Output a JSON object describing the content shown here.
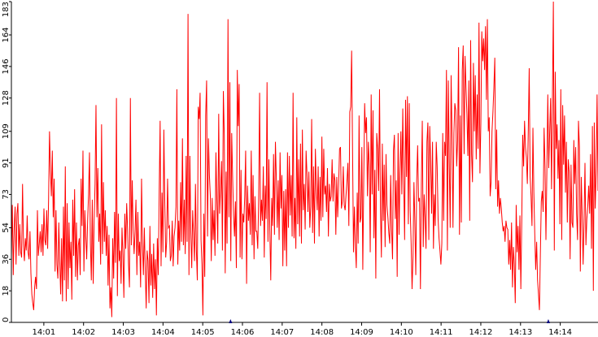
{
  "chart_data": {
    "type": "line",
    "title": "",
    "xlabel": "",
    "ylabel": "",
    "ylim": [
      0,
      183
    ],
    "y_ticks": [
      0,
      18,
      36,
      54,
      73,
      91,
      109,
      128,
      146,
      164,
      183
    ],
    "x_ticks": [
      "14:01",
      "14:02",
      "14:03",
      "14:04",
      "14:05",
      "14:06",
      "14:07",
      "14:08",
      "14:09",
      "14:10",
      "14:11",
      "14:12",
      "14:13",
      "14:14"
    ],
    "grid": false,
    "legend": "none",
    "line_color": "#ff0000",
    "axis_color": "#000000",
    "marker_color": "#000080",
    "markers_at": [
      "14:05",
      "14:13"
    ],
    "x_start": "14:00:11",
    "x_end": "14:14:57",
    "series": [
      {
        "values": [
          38,
          67,
          27,
          54,
          66,
          33,
          62,
          68,
          38,
          56,
          40,
          37,
          79,
          45,
          35,
          48,
          41,
          61,
          40,
          36,
          52,
          28,
          16,
          11,
          7,
          20,
          26,
          19,
          64,
          38,
          45,
          52,
          40,
          56,
          38,
          65,
          47,
          44,
          64,
          42,
          70,
          109,
          86,
          72,
          98,
          60,
          82,
          29,
          64,
          33,
          25,
          57,
          35,
          16,
          48,
          12,
          66,
          24,
          89,
          12,
          68,
          19,
          57,
          31,
          46,
          13,
          70,
          38,
          76,
          26,
          57,
          24,
          44,
          48,
          27,
          82,
          55,
          98,
          29,
          64,
          49,
          36,
          58,
          73,
          97,
          45,
          24,
          70,
          22,
          58,
          79,
          124,
          60,
          88,
          46,
          62,
          33,
          113,
          39,
          80,
          46,
          64,
          38,
          55,
          21,
          50,
          8,
          20,
          3,
          48,
          25,
          63,
          34,
          128,
          15,
          62,
          35,
          41,
          22,
          54,
          38,
          14,
          62,
          42,
          68,
          53,
          33,
          20,
          128,
          44,
          81,
          52,
          39,
          52,
          70,
          27,
          63,
          38,
          46,
          20,
          82,
          45,
          27,
          54,
          30,
          8,
          41,
          35,
          11,
          55,
          21,
          39,
          14,
          45,
          19,
          36,
          4,
          48,
          27,
          75,
          115,
          32,
          74,
          40,
          110,
          69,
          37,
          46,
          82,
          54,
          55,
          35,
          38,
          58,
          32,
          49,
          54,
          66,
          133,
          33,
          58,
          41,
          80,
          46,
          105,
          44,
          70,
          39,
          95,
          46,
          176,
          27,
          95,
          51,
          31,
          64,
          50,
          35,
          79,
          41,
          24,
          123,
          116,
          131,
          47,
          33,
          4,
          62,
          26,
          118,
          138,
          49,
          105,
          84,
          72,
          35,
          71,
          47,
          64,
          38,
          97,
          70,
          45,
          119,
          62,
          76,
          92,
          41,
          132,
          107,
          28,
          86,
          45,
          173,
          60,
          137,
          35,
          108,
          82,
          61,
          49,
          69,
          31,
          144,
          112,
          136,
          37,
          87,
          36,
          62,
          57,
          72,
          98,
          22,
          78,
          58,
          68,
          50,
          98,
          44,
          84,
          36,
          72,
          52,
          52,
          42,
          71,
          131,
          55,
          70,
          58,
          89,
          37,
          78,
          59,
          137,
          46,
          93,
          52,
          24,
          71,
          55,
          96,
          50,
          103,
          82,
          54,
          81,
          47,
          97,
          65,
          84,
          32,
          75,
          41,
          76,
          32,
          97,
          54,
          95,
          61,
          84,
          49,
          131,
          48,
          71,
          42,
          117,
          56,
          93,
          49,
          102,
          45,
          110,
          64,
          79,
          53,
          98,
          84,
          63,
          86,
          54,
          66,
          116,
          51,
          89,
          45,
          99,
          76,
          64,
          89,
          49,
          83,
          58,
          106,
          60,
          99,
          73,
          78,
          63,
          88,
          49,
          79,
          69,
          72,
          93,
          69,
          85,
          81,
          50,
          83,
          60,
          78,
          99,
          100,
          65,
          69,
          89,
          67,
          64,
          73,
          81,
          91,
          55,
          120,
          123,
          155,
          97,
          40,
          66,
          44,
          31,
          74,
          45,
          118,
          57,
          60,
          100,
          30,
          81,
          125,
          108,
          117,
          72,
          103,
          89,
          40,
          130,
          73,
          121,
          48,
          87,
          25,
          108,
          99,
          75,
          133,
          65,
          37,
          102,
          58,
          90,
          43,
          96,
          67,
          60,
          51,
          45,
          84,
          53,
          36,
          98,
          107,
          59,
          81,
          26,
          108,
          50,
          86,
          109,
          73,
          122,
          81,
          47,
          127,
          83,
          129,
          56,
          125,
          64,
          45,
          19,
          37,
          80,
          58,
          27,
          81,
          101,
          69,
          71,
          19,
          79,
          115,
          43,
          73,
          60,
          42,
          103,
          114,
          47,
          112,
          91,
          62,
          103,
          42,
          73,
          55,
          103,
          89,
          59,
          48,
          41,
          33,
          45,
          108,
          58,
          103,
          95,
          144,
          41,
          138,
          91,
          54,
          141,
          106,
          54,
          108,
          125,
          121,
          89,
          104,
          157,
          50,
          118,
          57,
          144,
          158,
          96,
          152,
          134,
          119,
          95,
          138,
          58,
          161,
          96,
          80,
          148,
          109,
          141,
          93,
          130,
          99,
          171,
          85,
          114,
          166,
          149,
          162,
          144,
          169,
          127,
          173,
          109,
          117,
          72,
          80,
          109,
          120,
          134,
          151,
          76,
          110,
          66,
          81,
          62,
          71,
          65,
          57,
          52,
          55,
          46,
          58,
          54,
          53,
          33,
          47,
          30,
          57,
          20,
          43,
          33,
          11,
          67,
          40,
          55,
          30,
          61,
          19,
          58,
          107,
          89,
          115,
          100,
          94,
          79,
          109,
          145,
          83,
          72,
          55,
          111,
          74,
          50,
          30,
          46,
          24,
          16,
          7,
          39,
          69,
          75,
          63,
          111,
          89,
          47,
          87,
          130,
          88,
          108,
          128,
          76,
          128,
          183,
          41,
          143,
          99,
          113,
          82,
          104,
          56,
          133,
          47,
          124,
          90,
          118,
          74,
          103,
          57,
          93,
          86,
          36,
          90,
          57,
          54,
          104,
          79,
          100,
          62,
          47,
          115,
          100,
          29,
          83,
          61,
          33,
          58,
          91,
          44,
          59,
          66,
          78,
          62,
          96,
          42,
          112,
          18,
          114,
          65,
          86,
          130,
          75
        ]
      }
    ]
  }
}
